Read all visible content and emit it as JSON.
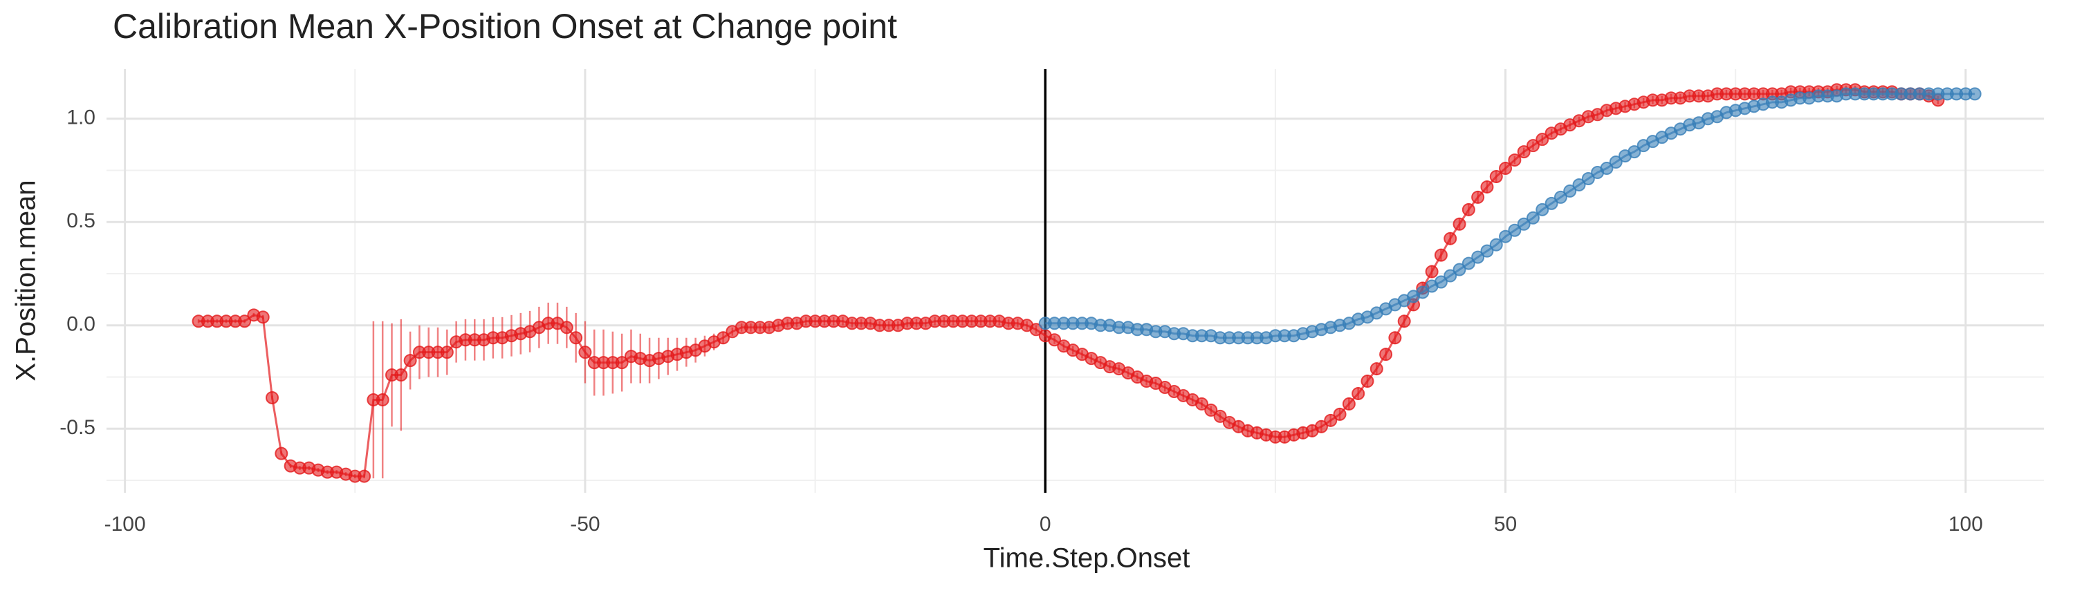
{
  "chart_data": {
    "type": "scatter",
    "title": "Calibration Mean X-Position Onset at Change point",
    "x_label": "Time.Step.Onset",
    "y_label": "X.Position.mean",
    "xlim": [
      -102,
      108.5
    ],
    "ylim": [
      -0.81,
      1.24
    ],
    "xticks": [
      -100,
      -50,
      0,
      50,
      100
    ],
    "yticks": [
      {
        "value": -0.5,
        "label": "-0.5"
      },
      {
        "value": 0,
        "label": "0.0"
      },
      0.5,
      {
        "value": 1,
        "label": "1.0"
      }
    ],
    "minor_xticks": [
      -75,
      -25,
      25,
      75
    ],
    "minor_yticks": [
      -0.75,
      -0.25,
      0.25,
      0.75
    ],
    "grid": true,
    "vline": 0,
    "series": [
      {
        "color": "#e41a1c",
        "x": [
          -92,
          -91,
          -90,
          -89,
          -88,
          -87,
          -86,
          -85,
          -84,
          -83,
          -82,
          -81,
          -80,
          -79,
          -78,
          -77,
          -76,
          -75,
          -74,
          -73,
          -72,
          -71,
          -70,
          -69,
          -68,
          -67,
          -66,
          -65,
          -64,
          -63,
          -62,
          -61,
          -60,
          -59,
          -58,
          -57,
          -56,
          -55,
          -54,
          -53,
          -52,
          -51,
          -50,
          -49,
          -48,
          -47,
          -46,
          -45,
          -44,
          -43,
          -42,
          -41,
          -40,
          -39,
          -38,
          -37,
          -36,
          -35,
          -34,
          -33,
          -32,
          -31,
          -30,
          -29,
          -28,
          -27,
          -26,
          -25,
          -24,
          -23,
          -22,
          -21,
          -20,
          -19,
          -18,
          -17,
          -16,
          -15,
          -14,
          -13,
          -12,
          -11,
          -10,
          -9,
          -8,
          -7,
          -6,
          -5,
          -4,
          -3,
          -2,
          -1,
          0,
          1,
          2,
          3,
          4,
          5,
          6,
          7,
          8,
          9,
          10,
          11,
          12,
          13,
          14,
          15,
          16,
          17,
          18,
          19,
          20,
          21,
          22,
          23,
          24,
          25,
          26,
          27,
          28,
          29,
          30,
          31,
          32,
          33,
          34,
          35,
          36,
          37,
          38,
          39,
          40,
          41,
          42,
          43,
          44,
          45,
          46,
          47,
          48,
          49,
          50,
          51,
          52,
          53,
          54,
          55,
          56,
          57,
          58,
          59,
          60,
          61,
          62,
          63,
          64,
          65,
          66,
          67,
          68,
          69,
          70,
          71,
          72,
          73,
          74,
          75,
          76,
          77,
          78,
          79,
          80,
          81,
          82,
          83,
          84,
          85,
          86,
          87,
          88,
          89,
          90,
          91,
          92,
          93,
          94,
          95,
          96,
          97
        ],
        "values": [
          0.02,
          0.02,
          0.02,
          0.02,
          0.02,
          0.02,
          0.05,
          0.04,
          -0.35,
          -0.62,
          -0.68,
          -0.69,
          -0.69,
          -0.7,
          -0.71,
          -0.71,
          -0.72,
          -0.73,
          -0.73,
          -0.36,
          -0.36,
          -0.24,
          -0.24,
          -0.17,
          -0.13,
          -0.13,
          -0.13,
          -0.13,
          -0.08,
          -0.07,
          -0.07,
          -0.07,
          -0.06,
          -0.06,
          -0.05,
          -0.04,
          -0.03,
          -0.01,
          0.01,
          0.01,
          -0.01,
          -0.06,
          -0.13,
          -0.18,
          -0.18,
          -0.18,
          -0.18,
          -0.15,
          -0.16,
          -0.17,
          -0.16,
          -0.15,
          -0.14,
          -0.13,
          -0.12,
          -0.1,
          -0.08,
          -0.06,
          -0.03,
          -0.01,
          -0.01,
          -0.01,
          -0.01,
          0,
          0.01,
          0.01,
          0.02,
          0.02,
          0.02,
          0.02,
          0.02,
          0.01,
          0.01,
          0.01,
          0,
          0,
          0,
          0.01,
          0.01,
          0.01,
          0.02,
          0.02,
          0.02,
          0.02,
          0.02,
          0.02,
          0.02,
          0.02,
          0.01,
          0.01,
          0,
          -0.02,
          -0.05,
          -0.07,
          -0.1,
          -0.12,
          -0.14,
          -0.16,
          -0.18,
          -0.2,
          -0.21,
          -0.23,
          -0.25,
          -0.27,
          -0.28,
          -0.3,
          -0.32,
          -0.34,
          -0.36,
          -0.38,
          -0.41,
          -0.44,
          -0.47,
          -0.49,
          -0.51,
          -0.52,
          -0.53,
          -0.54,
          -0.54,
          -0.53,
          -0.52,
          -0.51,
          -0.49,
          -0.46,
          -0.43,
          -0.38,
          -0.33,
          -0.27,
          -0.21,
          -0.14,
          -0.06,
          0.02,
          0.1,
          0.18,
          0.26,
          0.34,
          0.42,
          0.49,
          0.56,
          0.62,
          0.67,
          0.72,
          0.76,
          0.8,
          0.84,
          0.87,
          0.9,
          0.93,
          0.95,
          0.97,
          0.99,
          1.01,
          1.02,
          1.04,
          1.05,
          1.06,
          1.07,
          1.08,
          1.09,
          1.09,
          1.1,
          1.1,
          1.11,
          1.11,
          1.11,
          1.12,
          1.12,
          1.12,
          1.12,
          1.12,
          1.12,
          1.12,
          1.12,
          1.13,
          1.13,
          1.13,
          1.13,
          1.13,
          1.14,
          1.14,
          1.14,
          1.13,
          1.13,
          1.13,
          1.13,
          1.12,
          1.12,
          1.12,
          1.11,
          1.09
        ],
        "errors": [
          0.01,
          0.01,
          0.01,
          0.01,
          0.01,
          0.01,
          0.01,
          0.01,
          0.01,
          0.01,
          0.01,
          0.01,
          0.01,
          0.01,
          0.01,
          0.01,
          0.01,
          0.01,
          0.01,
          0.38,
          0.38,
          0.25,
          0.27,
          0.14,
          0.13,
          0.12,
          0.12,
          0.11,
          0.1,
          0.1,
          0.1,
          0.1,
          0.1,
          0.1,
          0.1,
          0.1,
          0.1,
          0.1,
          0.1,
          0.1,
          0.1,
          0.12,
          0.15,
          0.16,
          0.16,
          0.15,
          0.14,
          0.13,
          0.12,
          0.11,
          0.1,
          0.09,
          0.08,
          0.07,
          0.06,
          0.05,
          0.04,
          0.03,
          0.02,
          0.02,
          0.02,
          0.02,
          0.02,
          0.02,
          0.02,
          0.02,
          0.02,
          0.02,
          0.02,
          0.02,
          0.02,
          0.02,
          0.02,
          0.02,
          0.02,
          0.02,
          0.02,
          0.02,
          0.02,
          0.02,
          0.02,
          0.02,
          0.02,
          0.02,
          0.02,
          0.02,
          0.02,
          0.02,
          0.02,
          0.02,
          0.02,
          0.02,
          0.02,
          0.02,
          0.02,
          0.02,
          0.02,
          0.02,
          0.02,
          0.02,
          0.02,
          0.02,
          0.02,
          0.02,
          0.02,
          0.02,
          0.02,
          0.02,
          0.02,
          0.02,
          0.02,
          0.02,
          0.02,
          0.03,
          0.03,
          0.03,
          0.03,
          0.03,
          0.03,
          0.03,
          0.03,
          0.03,
          0.03,
          0.03,
          0.03,
          0.03,
          0.03,
          0.03,
          0.03,
          0.03,
          0.03,
          0.03,
          0.03,
          0.03,
          0.03,
          0.03,
          0.03,
          0.03,
          0.03,
          0.03,
          0.03,
          0.03,
          0.03,
          0.02,
          0.02,
          0.02,
          0.02,
          0.02,
          0.02,
          0.02,
          0.02,
          0.02,
          0.02,
          0.02,
          0.02,
          0.02,
          0.02,
          0.02,
          0.02,
          0.02,
          0.02,
          0.02,
          0.02,
          0.02,
          0.02,
          0.02,
          0.02,
          0.02,
          0.02,
          0.02,
          0.02,
          0.02,
          0.02,
          0.02,
          0.02,
          0.02,
          0.02,
          0.02,
          0.02,
          0.02,
          0.02,
          0.02,
          0.02,
          0.02,
          0.02,
          0.02,
          0.02,
          0.02,
          0.02,
          0.02
        ]
      },
      {
        "color": "#377eb8",
        "x": [
          0,
          1,
          2,
          3,
          4,
          5,
          6,
          7,
          8,
          9,
          10,
          11,
          12,
          13,
          14,
          15,
          16,
          17,
          18,
          19,
          20,
          21,
          22,
          23,
          24,
          25,
          26,
          27,
          28,
          29,
          30,
          31,
          32,
          33,
          34,
          35,
          36,
          37,
          38,
          39,
          40,
          41,
          42,
          43,
          44,
          45,
          46,
          47,
          48,
          49,
          50,
          51,
          52,
          53,
          54,
          55,
          56,
          57,
          58,
          59,
          60,
          61,
          62,
          63,
          64,
          65,
          66,
          67,
          68,
          69,
          70,
          71,
          72,
          73,
          74,
          75,
          76,
          77,
          78,
          79,
          80,
          81,
          82,
          83,
          84,
          85,
          86,
          87,
          88,
          89,
          90,
          91,
          92,
          93,
          94,
          95,
          96,
          97,
          98,
          99,
          100,
          101
        ],
        "values": [
          0.01,
          0.01,
          0.01,
          0.01,
          0.01,
          0.01,
          0,
          0,
          -0.01,
          -0.01,
          -0.02,
          -0.02,
          -0.03,
          -0.03,
          -0.04,
          -0.04,
          -0.05,
          -0.05,
          -0.05,
          -0.06,
          -0.06,
          -0.06,
          -0.06,
          -0.06,
          -0.06,
          -0.05,
          -0.05,
          -0.05,
          -0.04,
          -0.03,
          -0.02,
          -0.01,
          0,
          0.01,
          0.03,
          0.04,
          0.06,
          0.08,
          0.1,
          0.12,
          0.14,
          0.16,
          0.19,
          0.21,
          0.24,
          0.27,
          0.3,
          0.33,
          0.36,
          0.39,
          0.43,
          0.46,
          0.49,
          0.52,
          0.56,
          0.59,
          0.62,
          0.65,
          0.68,
          0.71,
          0.74,
          0.76,
          0.79,
          0.82,
          0.84,
          0.87,
          0.89,
          0.91,
          0.93,
          0.95,
          0.97,
          0.98,
          1,
          1.01,
          1.03,
          1.04,
          1.05,
          1.06,
          1.07,
          1.08,
          1.08,
          1.09,
          1.1,
          1.1,
          1.11,
          1.11,
          1.11,
          1.12,
          1.12,
          1.12,
          1.12,
          1.12,
          1.12,
          1.12,
          1.12,
          1.12,
          1.12,
          1.12,
          1.12,
          1.12,
          1.12,
          1.12
        ]
      }
    ]
  }
}
